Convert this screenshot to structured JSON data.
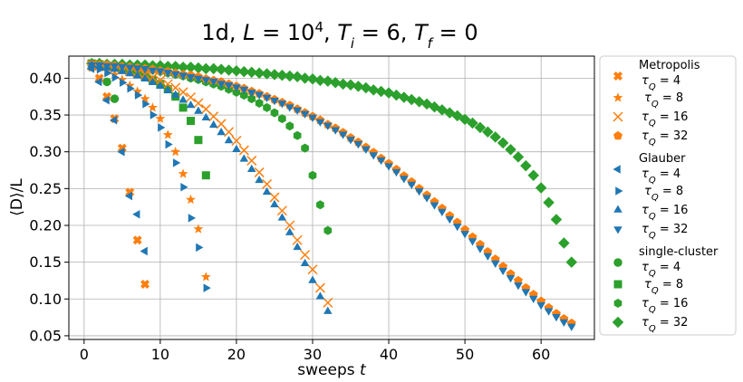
{
  "chart_data": {
    "type": "scatter",
    "title": "1d, L = 10⁴, Tᵢ = 6, T_f = 0",
    "title_parts": {
      "pre": "1d, ",
      "L": "L",
      "eq1": " = 10",
      "exp": "4",
      "c1": ", ",
      "T": "T",
      "i": "i",
      "eq2": " = 6, ",
      "T2": "T",
      "f": "f",
      "eq3": " = 0"
    },
    "xlabel": "sweeps t",
    "xlabel_parts": {
      "text": "sweeps ",
      "var": "t"
    },
    "ylabel": "⟨D⟩/L",
    "xlim": [
      -2,
      67
    ],
    "ylim": [
      0.045,
      0.43
    ],
    "xticks": [
      0,
      10,
      20,
      30,
      40,
      50,
      60
    ],
    "yticks": [
      0.05,
      0.1,
      0.15,
      0.2,
      0.25,
      0.3,
      0.35,
      0.4
    ],
    "ytick_labels": [
      "0.05",
      "0.10",
      "0.15",
      "0.20",
      "0.25",
      "0.30",
      "0.35",
      "0.40"
    ],
    "grid": true,
    "legend_position": "outside-right",
    "colors": {
      "orange": "#ff7f0e",
      "blue": "#1f77b4",
      "green": "#2ca02c"
    },
    "groups": [
      {
        "title": "Metropolis",
        "entries": [
          0,
          1,
          2,
          3
        ]
      },
      {
        "title": "Glauber",
        "entries": [
          4,
          5,
          6,
          7
        ]
      },
      {
        "title": "single-cluster",
        "entries": [
          8,
          9,
          10,
          11
        ]
      }
    ],
    "series": [
      {
        "name": "τ_Q = 4",
        "tau": "4",
        "marker": "X",
        "color": "#ff7f0e",
        "x": [
          1,
          2,
          3,
          4,
          5,
          6,
          7,
          8
        ],
        "y": [
          0.415,
          0.4,
          0.375,
          0.345,
          0.305,
          0.245,
          0.18,
          0.12
        ]
      },
      {
        "name": "τ_Q = 8",
        "tau": "8",
        "marker": "star",
        "color": "#ff7f0e",
        "x": [
          1,
          2,
          3,
          4,
          5,
          6,
          7,
          8,
          9,
          10,
          11,
          12,
          13,
          14,
          15,
          16
        ],
        "y": [
          0.418,
          0.415,
          0.41,
          0.405,
          0.398,
          0.39,
          0.382,
          0.372,
          0.36,
          0.345,
          0.323,
          0.3,
          0.27,
          0.235,
          0.195,
          0.13
        ]
      },
      {
        "name": "τ_Q = 16",
        "tau": "16",
        "marker": "x",
        "color": "#ff7f0e",
        "x": [
          1,
          2,
          3,
          4,
          5,
          6,
          7,
          8,
          9,
          10,
          11,
          12,
          13,
          14,
          15,
          16,
          17,
          18,
          19,
          20,
          21,
          22,
          23,
          24,
          25,
          26,
          27,
          28,
          29,
          30,
          31,
          32
        ],
        "y": [
          0.418,
          0.417,
          0.416,
          0.414,
          0.412,
          0.41,
          0.408,
          0.405,
          0.401,
          0.397,
          0.392,
          0.387,
          0.381,
          0.374,
          0.366,
          0.358,
          0.348,
          0.338,
          0.327,
          0.315,
          0.302,
          0.288,
          0.272,
          0.256,
          0.238,
          0.22,
          0.2,
          0.18,
          0.16,
          0.14,
          0.115,
          0.095
        ]
      },
      {
        "name": "τ_Q = 32",
        "tau": "32",
        "marker": "pentagon",
        "color": "#ff7f0e",
        "x": [
          1,
          2,
          3,
          4,
          5,
          6,
          7,
          8,
          9,
          10,
          11,
          12,
          13,
          14,
          15,
          16,
          17,
          18,
          19,
          20,
          21,
          22,
          23,
          24,
          25,
          26,
          27,
          28,
          29,
          30,
          31,
          32,
          33,
          34,
          35,
          36,
          37,
          38,
          39,
          40,
          41,
          42,
          43,
          44,
          45,
          46,
          47,
          48,
          49,
          50,
          51,
          52,
          53,
          54,
          55,
          56,
          57,
          58,
          59,
          60,
          61,
          62,
          63,
          64
        ],
        "y": [
          0.419,
          0.418,
          0.418,
          0.417,
          0.416,
          0.415,
          0.414,
          0.413,
          0.412,
          0.41,
          0.409,
          0.407,
          0.405,
          0.404,
          0.402,
          0.399,
          0.397,
          0.395,
          0.392,
          0.389,
          0.386,
          0.382,
          0.379,
          0.375,
          0.371,
          0.367,
          0.363,
          0.358,
          0.353,
          0.348,
          0.343,
          0.337,
          0.332,
          0.326,
          0.319,
          0.313,
          0.306,
          0.299,
          0.291,
          0.284,
          0.276,
          0.267,
          0.259,
          0.25,
          0.241,
          0.232,
          0.223,
          0.213,
          0.204,
          0.194,
          0.184,
          0.174,
          0.164,
          0.154,
          0.144,
          0.134,
          0.125,
          0.115,
          0.106,
          0.097,
          0.088,
          0.08,
          0.073,
          0.067
        ]
      },
      {
        "name": "τ_Q = 4",
        "tau": "4",
        "marker": "tri-left",
        "color": "#1f77b4",
        "x": [
          1,
          2,
          3,
          4,
          5,
          6,
          7,
          8
        ],
        "y": [
          0.413,
          0.395,
          0.37,
          0.343,
          0.3,
          0.24,
          0.215,
          0.165
        ]
      },
      {
        "name": "τ_Q = 8",
        "tau": "8",
        "marker": "tri-right",
        "color": "#1f77b4",
        "x": [
          1,
          2,
          3,
          4,
          5,
          6,
          7,
          8,
          9,
          10,
          11,
          12,
          13,
          14,
          15,
          16
        ],
        "y": [
          0.416,
          0.412,
          0.407,
          0.401,
          0.394,
          0.386,
          0.377,
          0.365,
          0.35,
          0.333,
          0.31,
          0.285,
          0.252,
          0.21,
          0.17,
          0.115
        ]
      },
      {
        "name": "τ_Q = 16",
        "tau": "16",
        "marker": "tri-up",
        "color": "#1f77b4",
        "x": [
          1,
          2,
          3,
          4,
          5,
          6,
          7,
          8,
          9,
          10,
          11,
          12,
          13,
          14,
          15,
          16,
          17,
          18,
          19,
          20,
          21,
          22,
          23,
          24,
          25,
          26,
          27,
          28,
          29,
          30,
          31,
          32
        ],
        "y": [
          0.418,
          0.416,
          0.414,
          0.412,
          0.409,
          0.406,
          0.403,
          0.399,
          0.394,
          0.389,
          0.383,
          0.377,
          0.37,
          0.363,
          0.355,
          0.346,
          0.336,
          0.326,
          0.315,
          0.303,
          0.29,
          0.276,
          0.261,
          0.245,
          0.228,
          0.21,
          0.19,
          0.17,
          0.148,
          0.125,
          0.103,
          0.083
        ]
      },
      {
        "name": "τ_Q = 32",
        "tau": "32",
        "marker": "tri-down",
        "color": "#1f77b4",
        "x": [
          1,
          2,
          3,
          4,
          5,
          6,
          7,
          8,
          9,
          10,
          11,
          12,
          13,
          14,
          15,
          16,
          17,
          18,
          19,
          20,
          21,
          22,
          23,
          24,
          25,
          26,
          27,
          28,
          29,
          30,
          31,
          32,
          33,
          34,
          35,
          36,
          37,
          38,
          39,
          40,
          41,
          42,
          43,
          44,
          45,
          46,
          47,
          48,
          49,
          50,
          51,
          52,
          53,
          54,
          55,
          56,
          57,
          58,
          59,
          60,
          61,
          62,
          63,
          64
        ],
        "y": [
          0.418,
          0.418,
          0.417,
          0.417,
          0.416,
          0.415,
          0.414,
          0.413,
          0.411,
          0.41,
          0.408,
          0.406,
          0.404,
          0.402,
          0.4,
          0.398,
          0.396,
          0.393,
          0.391,
          0.388,
          0.385,
          0.381,
          0.378,
          0.374,
          0.37,
          0.366,
          0.361,
          0.357,
          0.352,
          0.347,
          0.341,
          0.336,
          0.33,
          0.324,
          0.317,
          0.311,
          0.304,
          0.296,
          0.289,
          0.281,
          0.273,
          0.264,
          0.256,
          0.247,
          0.238,
          0.228,
          0.219,
          0.209,
          0.199,
          0.189,
          0.179,
          0.169,
          0.159,
          0.149,
          0.139,
          0.129,
          0.119,
          0.11,
          0.101,
          0.092,
          0.084,
          0.076,
          0.069,
          0.063
        ]
      },
      {
        "name": "τ_Q = 4",
        "tau": "4",
        "marker": "circle",
        "color": "#2ca02c",
        "x": [
          1,
          2,
          3,
          4
        ],
        "y": [
          0.42,
          0.418,
          0.395,
          0.372
        ]
      },
      {
        "name": "τ_Q = 8",
        "tau": "8",
        "marker": "square",
        "color": "#2ca02c",
        "x": [
          1,
          2,
          3,
          4,
          5,
          6,
          7,
          8,
          9,
          10,
          11,
          12,
          13,
          14,
          15,
          16
        ],
        "y": [
          0.42,
          0.419,
          0.417,
          0.415,
          0.412,
          0.41,
          0.406,
          0.402,
          0.398,
          0.392,
          0.385,
          0.375,
          0.36,
          0.342,
          0.316,
          0.268
        ]
      },
      {
        "name": "τ_Q = 16",
        "tau": "16",
        "marker": "hexagon",
        "color": "#2ca02c",
        "x": [
          1,
          2,
          3,
          4,
          5,
          6,
          7,
          8,
          9,
          10,
          11,
          12,
          13,
          14,
          15,
          16,
          17,
          18,
          19,
          20,
          21,
          22,
          23,
          24,
          25,
          26,
          27,
          28,
          29,
          30,
          31,
          32
        ],
        "y": [
          0.42,
          0.419,
          0.418,
          0.417,
          0.416,
          0.415,
          0.414,
          0.412,
          0.411,
          0.409,
          0.407,
          0.405,
          0.403,
          0.4,
          0.398,
          0.395,
          0.392,
          0.389,
          0.385,
          0.381,
          0.377,
          0.372,
          0.366,
          0.36,
          0.353,
          0.345,
          0.335,
          0.322,
          0.305,
          0.268,
          0.228,
          0.193
        ]
      },
      {
        "name": "τ_Q = 32",
        "tau": "32",
        "marker": "diamond",
        "color": "#2ca02c",
        "x": [
          1,
          2,
          3,
          4,
          5,
          6,
          7,
          8,
          9,
          10,
          11,
          12,
          13,
          14,
          15,
          16,
          17,
          18,
          19,
          20,
          21,
          22,
          23,
          24,
          25,
          26,
          27,
          28,
          29,
          30,
          31,
          32,
          33,
          34,
          35,
          36,
          37,
          38,
          39,
          40,
          41,
          42,
          43,
          44,
          45,
          46,
          47,
          48,
          49,
          50,
          51,
          52,
          53,
          54,
          55,
          56,
          57,
          58,
          59,
          60,
          61,
          62,
          63,
          64
        ],
        "y": [
          0.42,
          0.42,
          0.419,
          0.419,
          0.419,
          0.418,
          0.418,
          0.418,
          0.417,
          0.417,
          0.416,
          0.416,
          0.415,
          0.415,
          0.414,
          0.413,
          0.413,
          0.412,
          0.411,
          0.41,
          0.409,
          0.408,
          0.407,
          0.406,
          0.405,
          0.404,
          0.403,
          0.402,
          0.4,
          0.399,
          0.397,
          0.396,
          0.394,
          0.392,
          0.391,
          0.389,
          0.387,
          0.384,
          0.382,
          0.38,
          0.377,
          0.374,
          0.371,
          0.368,
          0.365,
          0.361,
          0.357,
          0.353,
          0.349,
          0.344,
          0.339,
          0.333,
          0.327,
          0.32,
          0.312,
          0.303,
          0.293,
          0.281,
          0.268,
          0.251,
          0.231,
          0.208,
          0.176,
          0.15
        ]
      }
    ]
  }
}
